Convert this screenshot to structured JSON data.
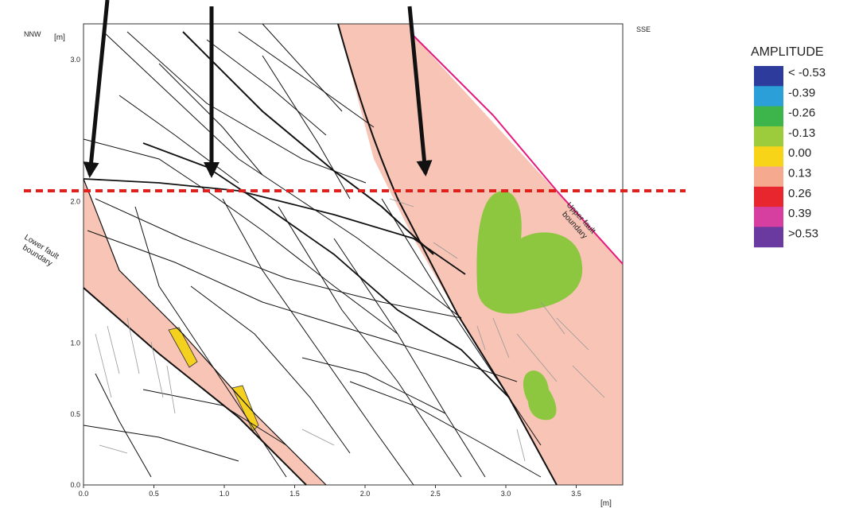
{
  "header": {
    "left": "NNW",
    "right": "SSE"
  },
  "axes": {
    "y_unit": "[m]",
    "y_ticks": [
      "0.0",
      "0.5",
      "1.0",
      "2.0",
      "3.0"
    ],
    "x_unit": "[m]",
    "x_ticks": [
      "0.0",
      "0.5",
      "1.0",
      "1.5",
      "2.0",
      "2.5",
      "3.0",
      "3.5"
    ]
  },
  "annotations": {
    "lower_fault": [
      "Lower fault",
      "boundary"
    ],
    "upper_fault": [
      "Upper fault",
      "boundary"
    ]
  },
  "legend": {
    "title": "AMPLITUDE",
    "items": [
      {
        "label": "< -0.53",
        "color": "#2c3b9c"
      },
      {
        "label": "-0.39",
        "color": "#2a9fd8"
      },
      {
        "label": "-0.26",
        "color": "#3db54a"
      },
      {
        "label": "-0.13",
        "color": "#9ccc3c"
      },
      {
        "label": "0.00",
        "color": "#f7d417"
      },
      {
        "label": "0.13",
        "color": "#f5a98f"
      },
      {
        "label": "0.26",
        "color": "#e8262e"
      },
      {
        "label": "0.39",
        "color": "#d63fa0"
      },
      {
        "label": ">0.53",
        "color": "#6b3aa0"
      }
    ]
  }
}
